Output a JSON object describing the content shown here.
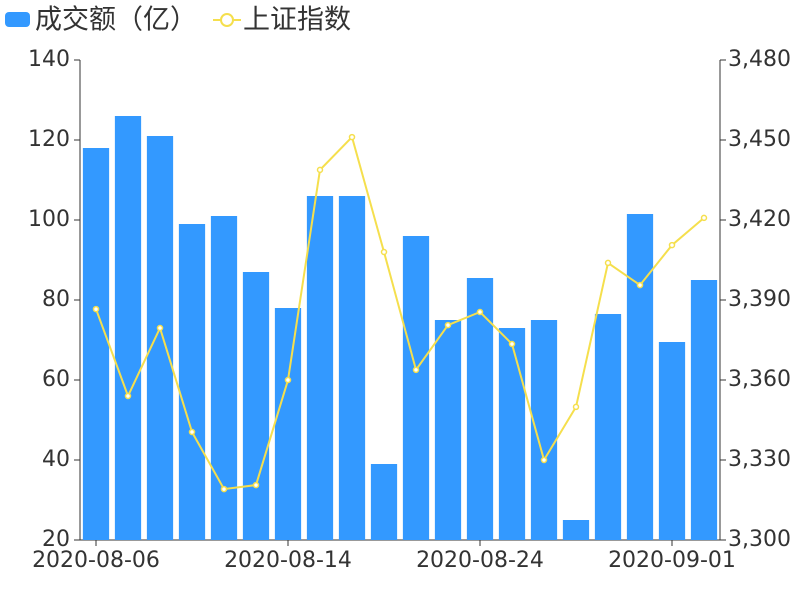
{
  "chart_data": {
    "type": "bar",
    "categories": [
      "2020-08-06",
      null,
      null,
      null,
      null,
      null,
      "2020-08-14",
      null,
      null,
      null,
      null,
      null,
      "2020-08-24",
      null,
      null,
      null,
      null,
      null,
      "2020-09-01",
      null
    ],
    "series": [
      {
        "name": "成交额（亿）",
        "type": "bar",
        "color": "#3399ff",
        "values": [
          118,
          126,
          121,
          99,
          101,
          87,
          78,
          106,
          106,
          39,
          96,
          75,
          85.5,
          73,
          75,
          25,
          76.5,
          101.5,
          69.5,
          85
        ]
      },
      {
        "name": "上证指数",
        "type": "line",
        "axis": "y2",
        "color": "#f5df4d",
        "values": [
          3386.6,
          3354,
          3379.5,
          3340.5,
          3319.1,
          3320.6,
          3360,
          3438.8,
          3451.1,
          3408,
          3363.8,
          3380.6,
          3385.5,
          3373.5,
          3330,
          3349.9,
          3403.9,
          3395.6,
          3410.6,
          3420.8
        ]
      }
    ],
    "ylim": [
      20,
      140
    ],
    "yticks": [
      20,
      40,
      60,
      80,
      100,
      120,
      140
    ],
    "y2lim": [
      3300,
      3480
    ],
    "y2ticks": [
      {
        "value": 3300,
        "label": "3,300"
      },
      {
        "value": 3330,
        "label": "3,330"
      },
      {
        "value": 3360,
        "label": "3,360"
      },
      {
        "value": 3390,
        "label": "3,390"
      },
      {
        "value": 3420,
        "label": "3,420"
      },
      {
        "value": 3450,
        "label": "3,450"
      },
      {
        "value": 3480,
        "label": "3,480"
      }
    ],
    "legend": "top-left",
    "grid": false
  }
}
